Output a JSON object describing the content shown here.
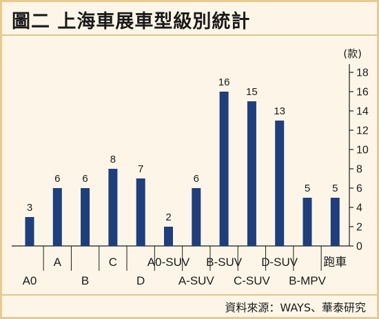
{
  "title": "圖二  上海車展車型級別統計",
  "source": "資料來源：WAYS、華泰研究",
  "colors": {
    "bar": "#1f3e7c",
    "panel": "#fdf6e8",
    "frame": "#e9c98c"
  },
  "chart_data": {
    "type": "bar",
    "title": "圖二  上海車展車型級別統計",
    "unit_label": "(款)",
    "categories": [
      "A0",
      "A",
      "B",
      "C",
      "D",
      "A0-SUV",
      "A-SUV",
      "B-SUV",
      "C-SUV",
      "D-SUV",
      "B-MPV",
      "跑車"
    ],
    "values": [
      3,
      6,
      6,
      8,
      7,
      2,
      6,
      16,
      15,
      13,
      5,
      5
    ],
    "ylim": [
      0,
      18
    ],
    "yticks": [
      0,
      2,
      4,
      6,
      8,
      10,
      12,
      14,
      16,
      18
    ],
    "ytick_labels": [
      "0",
      "2",
      "4",
      "6",
      "8",
      "10",
      "12",
      "14",
      "16",
      "18"
    ],
    "data_labels": [
      "3",
      "6",
      "6",
      "8",
      "7",
      "2",
      "6",
      "16",
      "15",
      "13",
      "5",
      "5"
    ],
    "y_axis_position": "right",
    "grid": false,
    "legend": "none"
  }
}
